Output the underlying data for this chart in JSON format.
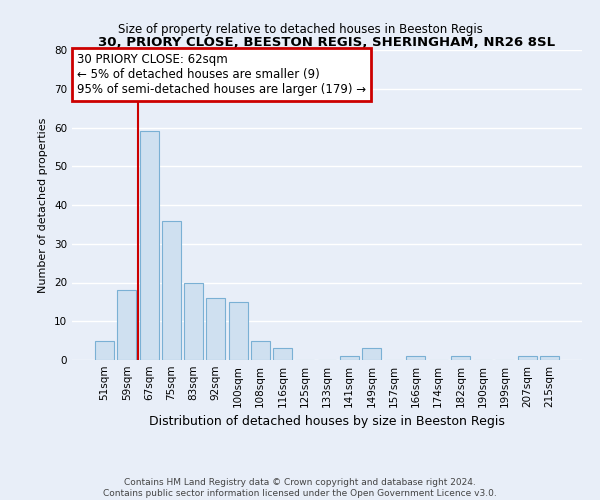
{
  "title": "30, PRIORY CLOSE, BEESTON REGIS, SHERINGHAM, NR26 8SL",
  "subtitle": "Size of property relative to detached houses in Beeston Regis",
  "xlabel": "Distribution of detached houses by size in Beeston Regis",
  "ylabel": "Number of detached properties",
  "bar_labels": [
    "51sqm",
    "59sqm",
    "67sqm",
    "75sqm",
    "83sqm",
    "92sqm",
    "100sqm",
    "108sqm",
    "116sqm",
    "125sqm",
    "133sqm",
    "141sqm",
    "149sqm",
    "157sqm",
    "166sqm",
    "174sqm",
    "182sqm",
    "190sqm",
    "199sqm",
    "207sqm",
    "215sqm"
  ],
  "bar_values": [
    5,
    18,
    59,
    36,
    20,
    16,
    15,
    5,
    3,
    0,
    0,
    1,
    3,
    0,
    1,
    0,
    1,
    0,
    0,
    1,
    1
  ],
  "bar_fill_color": "#cfe0f0",
  "bar_edge_color": "#7ab0d4",
  "reference_line_x": 1.5,
  "reference_line_color": "#cc0000",
  "ylim": [
    0,
    80
  ],
  "yticks": [
    0,
    10,
    20,
    30,
    40,
    50,
    60,
    70,
    80
  ],
  "annotation_line1": "30 PRIORY CLOSE: 62sqm",
  "annotation_line2": "← 5% of detached houses are smaller (9)",
  "annotation_line3": "95% of semi-detached houses are larger (179) →",
  "annotation_box_facecolor": "#ffffff",
  "annotation_box_edgecolor": "#cc0000",
  "footer_line1": "Contains HM Land Registry data © Crown copyright and database right 2024.",
  "footer_line2": "Contains public sector information licensed under the Open Government Licence v3.0.",
  "bg_color": "#e8eef8",
  "grid_color": "#ffffff",
  "title_fontsize": 9.5,
  "subtitle_fontsize": 8.5,
  "ylabel_fontsize": 8,
  "xlabel_fontsize": 9,
  "tick_fontsize": 7.5,
  "annotation_fontsize": 8.5,
  "footer_fontsize": 6.5
}
